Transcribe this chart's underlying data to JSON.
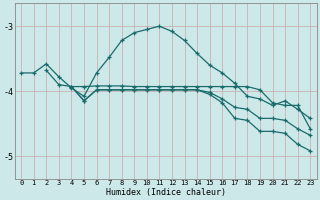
{
  "xlabel": "Humidex (Indice chaleur)",
  "bg_color": "#cce8e8",
  "grid_color": "#b0d0d0",
  "line_color": "#1a6b6b",
  "x_ticks": [
    0,
    1,
    2,
    3,
    4,
    5,
    6,
    7,
    8,
    9,
    10,
    11,
    12,
    13,
    14,
    15,
    16,
    17,
    18,
    19,
    20,
    21,
    22,
    23
  ],
  "ylim": [
    -5.35,
    -2.65
  ],
  "xlim": [
    -0.5,
    23.5
  ],
  "yticks": [
    -5,
    -4,
    -3
  ],
  "line_A_x": [
    0,
    1,
    2,
    3,
    4,
    5,
    6,
    7,
    8,
    9,
    10,
    11,
    12,
    13,
    14,
    15,
    16,
    17,
    18,
    19,
    20,
    21,
    22,
    23
  ],
  "line_A_y": [
    -3.72,
    -3.72,
    -3.58,
    -3.78,
    -3.95,
    -4.08,
    -3.72,
    -3.48,
    -3.22,
    -3.1,
    -3.05,
    -3.0,
    -3.08,
    -3.22,
    -3.42,
    -3.6,
    -3.72,
    -3.88,
    -4.08,
    -4.12,
    -4.22,
    -4.15,
    -4.28,
    -4.42
  ],
  "line_B_x": [
    2,
    3,
    4,
    5,
    6,
    7,
    8,
    9,
    10,
    11,
    12,
    13,
    14,
    15,
    16,
    17,
    18,
    19,
    20,
    21,
    22,
    23
  ],
  "line_B_y": [
    -3.68,
    -3.9,
    -3.93,
    -3.93,
    -3.92,
    -3.92,
    -3.92,
    -3.93,
    -3.93,
    -3.93,
    -3.93,
    -3.93,
    -3.93,
    -3.93,
    -3.93,
    -3.93,
    -3.93,
    -3.98,
    -4.18,
    -4.22,
    -4.22,
    -4.58
  ],
  "line_C_x": [
    4,
    5,
    6,
    7,
    8,
    9,
    10,
    11,
    12,
    13,
    14,
    15,
    16,
    17,
    18,
    19,
    20,
    21,
    22,
    23
  ],
  "line_C_y": [
    -3.93,
    -4.15,
    -3.98,
    -3.98,
    -3.98,
    -3.98,
    -3.98,
    -3.98,
    -3.98,
    -3.98,
    -3.98,
    -4.02,
    -4.12,
    -4.25,
    -4.28,
    -4.42,
    -4.42,
    -4.45,
    -4.58,
    -4.68
  ],
  "line_D_x": [
    4,
    5,
    6,
    7,
    8,
    9,
    10,
    11,
    12,
    13,
    14,
    15,
    16,
    17,
    18,
    19,
    20,
    21,
    22,
    23
  ],
  "line_D_y": [
    -3.93,
    -4.15,
    -3.98,
    -3.98,
    -3.98,
    -3.98,
    -3.98,
    -3.98,
    -3.98,
    -3.98,
    -3.98,
    -4.05,
    -4.18,
    -4.42,
    -4.45,
    -4.62,
    -4.62,
    -4.65,
    -4.82,
    -4.92
  ]
}
